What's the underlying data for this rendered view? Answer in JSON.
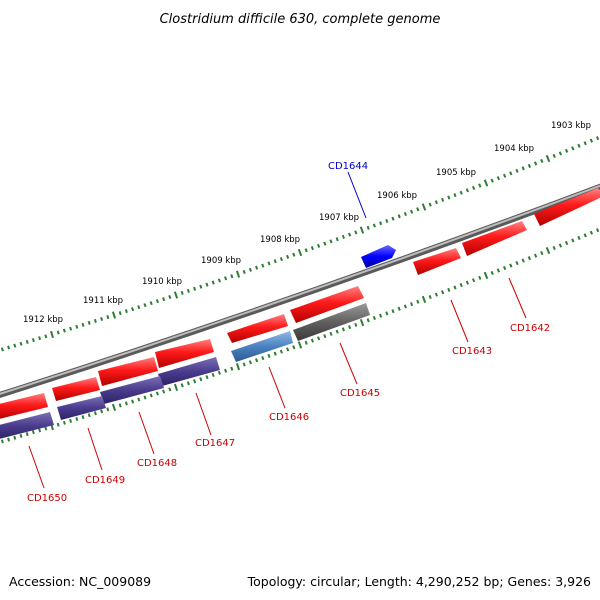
{
  "title": "Clostridium difficile 630, complete genome",
  "footer": {
    "accession": "Accession: NC_009089",
    "summary": "Topology: circular; Length: 4,290,252 bp; Genes: 3,926"
  },
  "colors": {
    "backbone": "#858585",
    "forward_gene": "#ff0000",
    "reverse_gene": "#4a3c8c",
    "label_red": "#cc0000",
    "label_blue": "#0000cc",
    "highlight_gene": "#0000ff",
    "grey_gene": "#606060",
    "steel_gene": "#4a82c0",
    "tick": "#2e7d32"
  },
  "tick_labels": [
    "1903 kbp",
    "1904 kbp",
    "1905 kbp",
    "1906 kbp",
    "1907 kbp",
    "1908 kbp",
    "1909 kbp",
    "1910 kbp",
    "1911 kbp",
    "1912 kbp"
  ],
  "gene_labels": [
    "CD1642",
    "CD1643",
    "CD1644",
    "CD1645",
    "CD1646",
    "CD1647",
    "CD1648",
    "CD1649",
    "CD1650"
  ]
}
